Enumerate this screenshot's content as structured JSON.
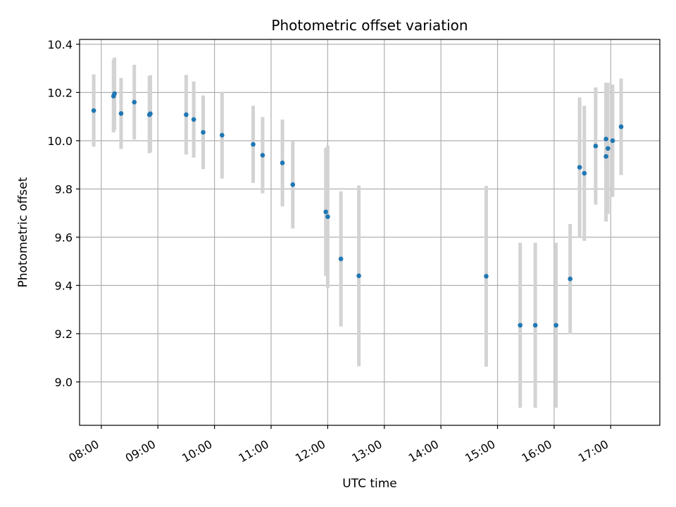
{
  "chart_data": {
    "type": "scatter",
    "title": "Photometric offset variation",
    "xlabel": "UTC time",
    "ylabel": "Photometric offset",
    "x_ticks": [
      "08:00",
      "09:00",
      "10:00",
      "11:00",
      "12:00",
      "13:00",
      "14:00",
      "15:00",
      "16:00",
      "17:00"
    ],
    "y_ticks": [
      "9.0",
      "9.2",
      "9.4",
      "9.6",
      "9.8",
      "10.0",
      "10.2",
      "10.4"
    ],
    "xlim": [
      "07:37",
      "17:52"
    ],
    "ylim": [
      8.82,
      10.42
    ],
    "grid": true,
    "marker_color": "#1f77b4",
    "errorbar_color": "#d3d3d3",
    "points": [
      {
        "x": "07:52",
        "y": 10.125,
        "err": 0.15
      },
      {
        "x": "08:13",
        "y": 10.185,
        "err": 0.15
      },
      {
        "x": "08:14",
        "y": 10.195,
        "err": 0.15
      },
      {
        "x": "08:21",
        "y": 10.113,
        "err": 0.147
      },
      {
        "x": "08:35",
        "y": 10.16,
        "err": 0.155
      },
      {
        "x": "08:51",
        "y": 10.108,
        "err": 0.16
      },
      {
        "x": "08:52",
        "y": 10.112,
        "err": 0.16
      },
      {
        "x": "09:30",
        "y": 10.108,
        "err": 0.165
      },
      {
        "x": "09:38",
        "y": 10.088,
        "err": 0.158
      },
      {
        "x": "09:48",
        "y": 10.035,
        "err": 0.153
      },
      {
        "x": "10:08",
        "y": 10.023,
        "err": 0.18
      },
      {
        "x": "10:41",
        "y": 9.985,
        "err": 0.16
      },
      {
        "x": "10:51",
        "y": 9.94,
        "err": 0.158
      },
      {
        "x": "11:12",
        "y": 9.908,
        "err": 0.18
      },
      {
        "x": "11:23",
        "y": 9.818,
        "err": 0.182
      },
      {
        "x": "11:58",
        "y": 9.705,
        "err": 0.265
      },
      {
        "x": "12:00",
        "y": 9.685,
        "err": 0.295
      },
      {
        "x": "12:14",
        "y": 9.51,
        "err": 0.28
      },
      {
        "x": "12:33",
        "y": 9.44,
        "err": 0.375
      },
      {
        "x": "14:48",
        "y": 9.438,
        "err": 0.375
      },
      {
        "x": "15:24",
        "y": 9.235,
        "err": 0.342
      },
      {
        "x": "15:40",
        "y": 9.235,
        "err": 0.342
      },
      {
        "x": "16:02",
        "y": 9.235,
        "err": 0.342
      },
      {
        "x": "16:17",
        "y": 9.427,
        "err": 0.228
      },
      {
        "x": "16:27",
        "y": 9.89,
        "err": 0.29
      },
      {
        "x": "16:32",
        "y": 9.865,
        "err": 0.28
      },
      {
        "x": "16:44",
        "y": 9.978,
        "err": 0.243
      },
      {
        "x": "16:55",
        "y": 10.007,
        "err": 0.233
      },
      {
        "x": "16:55",
        "y": 9.935,
        "err": 0.27
      },
      {
        "x": "16:57",
        "y": 9.968,
        "err": 0.272
      },
      {
        "x": "17:02",
        "y": 10.0,
        "err": 0.233
      },
      {
        "x": "17:11",
        "y": 10.058,
        "err": 0.2
      }
    ]
  }
}
